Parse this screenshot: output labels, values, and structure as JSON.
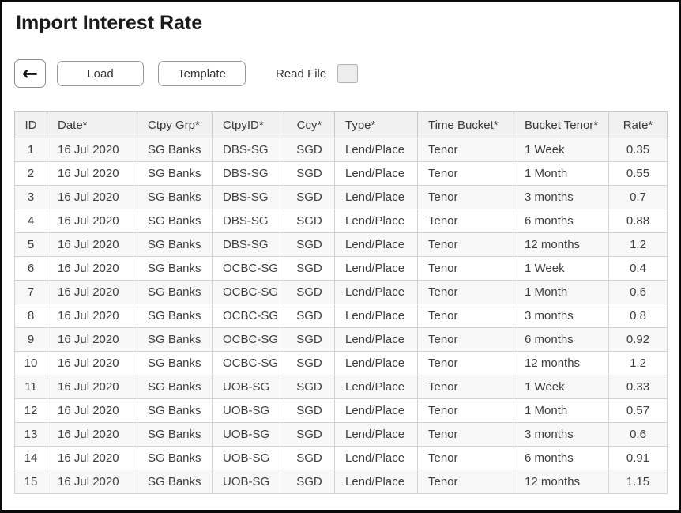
{
  "page": {
    "title": "Import Interest Rate"
  },
  "toolbar": {
    "back_icon": "←",
    "load_label": "Load",
    "template_label": "Template",
    "read_file_label": "Read File",
    "read_file_checked": false
  },
  "table": {
    "columns": [
      {
        "key": "id",
        "label": "ID"
      },
      {
        "key": "date",
        "label": "Date*"
      },
      {
        "key": "ctpy_grp",
        "label": "Ctpy Grp*"
      },
      {
        "key": "ctpy_id",
        "label": "CtpyID*"
      },
      {
        "key": "ccy",
        "label": "Ccy*"
      },
      {
        "key": "type",
        "label": "Type*"
      },
      {
        "key": "time_bucket",
        "label": "Time Bucket*"
      },
      {
        "key": "bucket_tenor",
        "label": "Bucket Tenor*"
      },
      {
        "key": "rate",
        "label": "Rate*"
      }
    ],
    "rows": [
      [
        "1",
        "16 Jul 2020",
        "SG Banks",
        "DBS-SG",
        "SGD",
        "Lend/Place",
        "Tenor",
        "1 Week",
        "0.35"
      ],
      [
        "2",
        "16 Jul 2020",
        "SG Banks",
        "DBS-SG",
        "SGD",
        "Lend/Place",
        "Tenor",
        "1 Month",
        "0.55"
      ],
      [
        "3",
        "16 Jul 2020",
        "SG Banks",
        "DBS-SG",
        "SGD",
        "Lend/Place",
        "Tenor",
        "3 months",
        "0.7"
      ],
      [
        "4",
        "16 Jul 2020",
        "SG Banks",
        "DBS-SG",
        "SGD",
        "Lend/Place",
        "Tenor",
        "6 months",
        "0.88"
      ],
      [
        "5",
        "16 Jul 2020",
        "SG Banks",
        "DBS-SG",
        "SGD",
        "Lend/Place",
        "Tenor",
        "12 months",
        "1.2"
      ],
      [
        "6",
        "16 Jul 2020",
        "SG Banks",
        "OCBC-SG",
        "SGD",
        "Lend/Place",
        "Tenor",
        "1 Week",
        "0.4"
      ],
      [
        "7",
        "16 Jul 2020",
        "SG Banks",
        "OCBC-SG",
        "SGD",
        "Lend/Place",
        "Tenor",
        "1 Month",
        "0.6"
      ],
      [
        "8",
        "16 Jul 2020",
        "SG Banks",
        "OCBC-SG",
        "SGD",
        "Lend/Place",
        "Tenor",
        "3 months",
        "0.8"
      ],
      [
        "9",
        "16 Jul 2020",
        "SG Banks",
        "OCBC-SG",
        "SGD",
        "Lend/Place",
        "Tenor",
        "6 months",
        "0.92"
      ],
      [
        "10",
        "16 Jul 2020",
        "SG Banks",
        "OCBC-SG",
        "SGD",
        "Lend/Place",
        "Tenor",
        "12 months",
        "1.2"
      ],
      [
        "11",
        "16 Jul 2020",
        "SG Banks",
        "UOB-SG",
        "SGD",
        "Lend/Place",
        "Tenor",
        "1 Week",
        "0.33"
      ],
      [
        "12",
        "16 Jul 2020",
        "SG Banks",
        "UOB-SG",
        "SGD",
        "Lend/Place",
        "Tenor",
        "1 Month",
        "0.57"
      ],
      [
        "13",
        "16 Jul 2020",
        "SG Banks",
        "UOB-SG",
        "SGD",
        "Lend/Place",
        "Tenor",
        "3 months",
        "0.6"
      ],
      [
        "14",
        "16 Jul 2020",
        "SG Banks",
        "UOB-SG",
        "SGD",
        "Lend/Place",
        "Tenor",
        "6 months",
        "0.91"
      ],
      [
        "15",
        "16 Jul 2020",
        "SG Banks",
        "UOB-SG",
        "SGD",
        "Lend/Place",
        "Tenor",
        "12 months",
        "1.15"
      ]
    ]
  },
  "colors": {
    "header_bg": "#f1f1f1",
    "odd_row_bg": "#f8f8f8",
    "grid_border": "#d2d2d2",
    "text": "#3d3d3d",
    "page_border": "#0a0a0a"
  }
}
